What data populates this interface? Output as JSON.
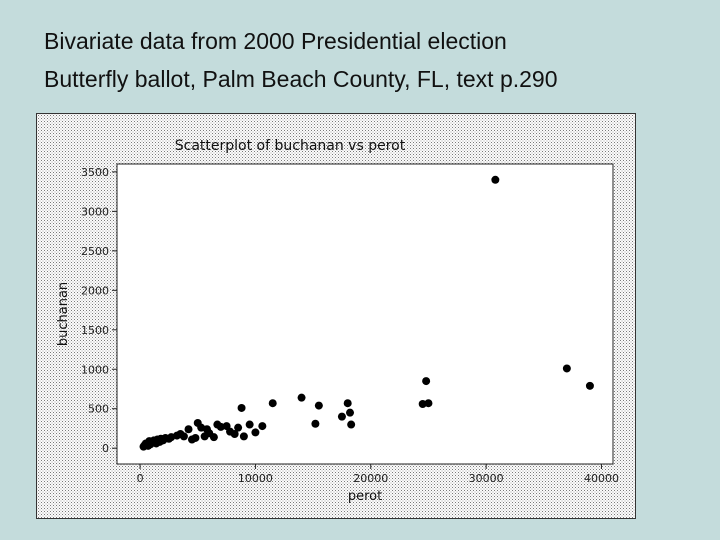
{
  "slide": {
    "title_line1": "Bivariate data from 2000 Presidential election",
    "title_line2": "Butterfly ballot, Palm Beach County, FL, text p.290"
  },
  "chart_data": {
    "type": "scatter",
    "title": "Scatterplot of buchanan vs perot",
    "xlabel": "perot",
    "ylabel": "buchanan",
    "xlim": [
      -2000,
      41000
    ],
    "ylim": [
      -200,
      3600
    ],
    "xticks": [
      0,
      10000,
      20000,
      30000,
      40000
    ],
    "xtick_labels": [
      "0",
      "10000",
      "20000",
      "30000",
      "40000"
    ],
    "yticks": [
      0,
      500,
      1000,
      1500,
      2000,
      2500,
      3000,
      3500
    ],
    "ytick_labels": [
      "0",
      "500",
      "1000",
      "1500",
      "2000",
      "2500",
      "3000",
      "3500"
    ],
    "grid": false,
    "marker_color": "#000000",
    "points": [
      [
        300,
        20
      ],
      [
        400,
        40
      ],
      [
        500,
        60
      ],
      [
        700,
        30
      ],
      [
        800,
        90
      ],
      [
        900,
        50
      ],
      [
        1100,
        70
      ],
      [
        1200,
        100
      ],
      [
        1400,
        60
      ],
      [
        1500,
        110
      ],
      [
        1700,
        80
      ],
      [
        1800,
        120
      ],
      [
        2000,
        100
      ],
      [
        2200,
        130
      ],
      [
        2500,
        120
      ],
      [
        2700,
        140
      ],
      [
        3200,
        160
      ],
      [
        3500,
        180
      ],
      [
        3800,
        150
      ],
      [
        4200,
        240
      ],
      [
        4500,
        110
      ],
      [
        4800,
        130
      ],
      [
        5000,
        320
      ],
      [
        5300,
        260
      ],
      [
        5600,
        150
      ],
      [
        5800,
        240
      ],
      [
        6000,
        190
      ],
      [
        6400,
        140
      ],
      [
        6700,
        300
      ],
      [
        7000,
        270
      ],
      [
        7500,
        280
      ],
      [
        7800,
        210
      ],
      [
        8200,
        180
      ],
      [
        8500,
        260
      ],
      [
        8800,
        510
      ],
      [
        9000,
        150
      ],
      [
        9500,
        300
      ],
      [
        10000,
        200
      ],
      [
        10600,
        280
      ],
      [
        11500,
        570
      ],
      [
        14000,
        640
      ],
      [
        15200,
        310
      ],
      [
        15500,
        540
      ],
      [
        17500,
        400
      ],
      [
        18000,
        570
      ],
      [
        18200,
        450
      ],
      [
        18300,
        300
      ],
      [
        24500,
        560
      ],
      [
        24800,
        850
      ],
      [
        25000,
        570
      ],
      [
        30800,
        3400
      ],
      [
        37000,
        1010
      ],
      [
        39000,
        790
      ]
    ]
  }
}
